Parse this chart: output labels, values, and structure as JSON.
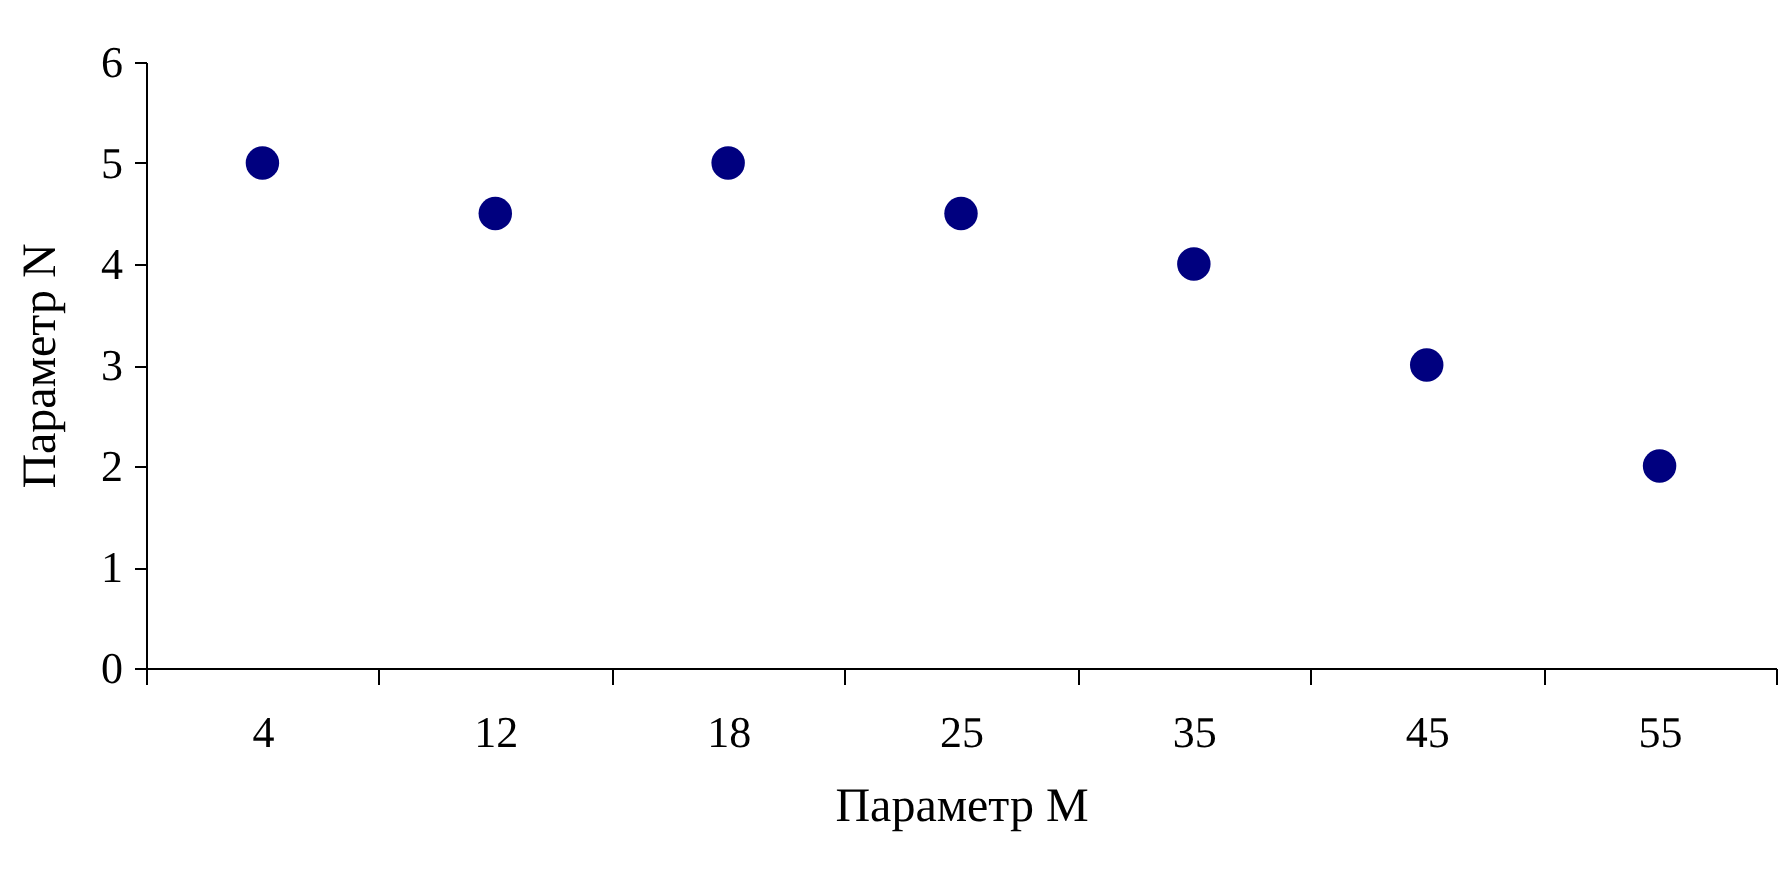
{
  "chart_data": {
    "type": "scatter",
    "xlabel": "Параметр M",
    "ylabel": "Параметр N",
    "categories": [
      "4",
      "12",
      "18",
      "25",
      "35",
      "45",
      "55"
    ],
    "series": [
      {
        "color": "#00007f",
        "values": [
          5,
          4.5,
          5,
          4.5,
          4,
          3,
          2
        ]
      }
    ],
    "ylim": [
      0,
      6
    ],
    "yticks": [
      0,
      1,
      2,
      3,
      4,
      5,
      6
    ],
    "grid": false,
    "marker": "circle"
  }
}
